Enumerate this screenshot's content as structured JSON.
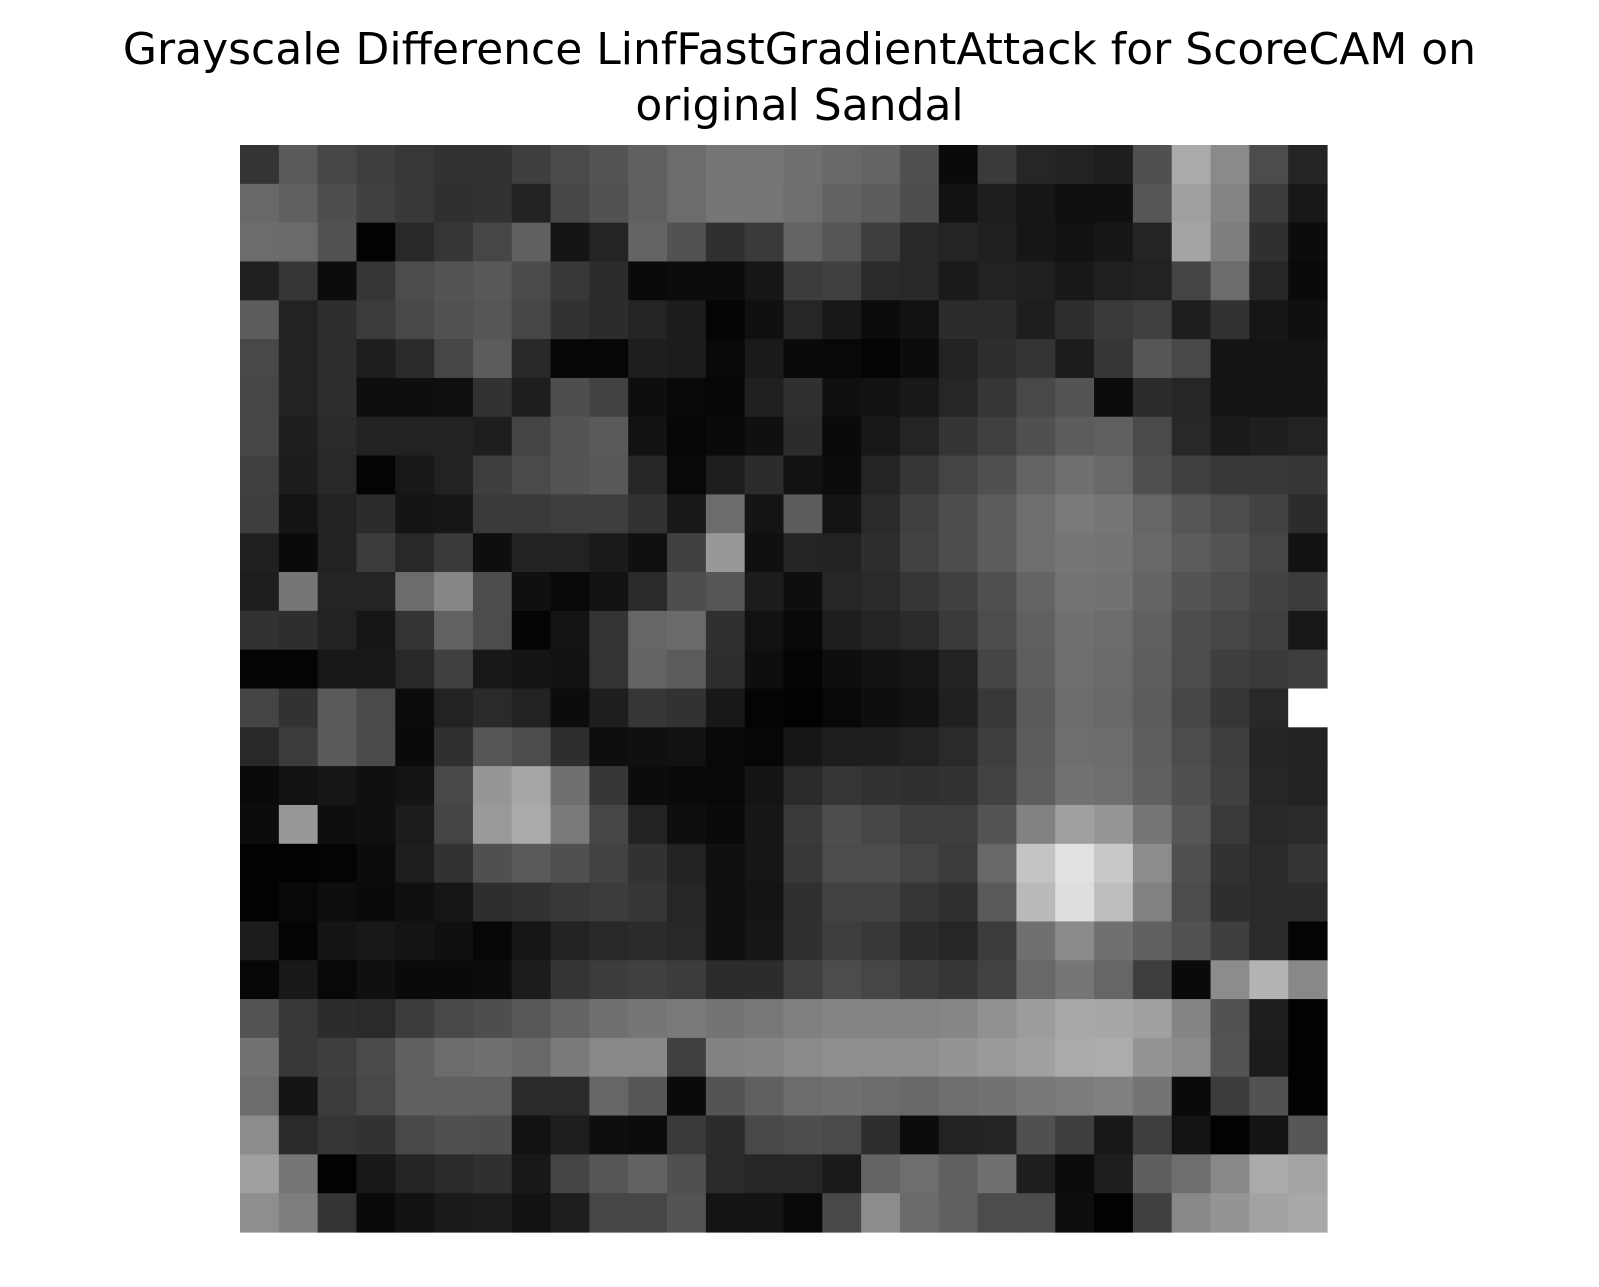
{
  "chart_data": {
    "type": "heatmap",
    "title_lines": [
      "Grayscale Difference LinfFastGradientAttack for ScoreCAM on",
      "original Sandal"
    ],
    "colormap": "gray",
    "value_range": [
      0,
      255
    ],
    "axes_visible": false,
    "rows": 28,
    "cols": 28,
    "values": [
      [
        52,
        90,
        70,
        62,
        55,
        50,
        50,
        62,
        74,
        84,
        96,
        108,
        118,
        118,
        112,
        104,
        100,
        80,
        10,
        58,
        38,
        34,
        30,
        80,
        170,
        138,
        76,
        36
      ],
      [
        104,
        96,
        78,
        64,
        56,
        48,
        50,
        34,
        70,
        82,
        96,
        108,
        118,
        118,
        110,
        98,
        92,
        78,
        18,
        30,
        22,
        16,
        16,
        86,
        160,
        132,
        60,
        24
      ],
      [
        108,
        106,
        82,
        2,
        40,
        54,
        70,
        96,
        20,
        36,
        100,
        82,
        48,
        58,
        100,
        86,
        62,
        40,
        36,
        32,
        22,
        18,
        22,
        36,
        164,
        126,
        48,
        12
      ],
      [
        32,
        54,
        12,
        54,
        76,
        84,
        88,
        74,
        56,
        44,
        10,
        12,
        12,
        22,
        60,
        64,
        42,
        40,
        26,
        34,
        32,
        24,
        32,
        34,
        68,
        108,
        38,
        10
      ],
      [
        92,
        34,
        46,
        60,
        72,
        82,
        86,
        70,
        50,
        44,
        36,
        28,
        4,
        16,
        38,
        24,
        12,
        18,
        44,
        44,
        30,
        46,
        58,
        64,
        30,
        50,
        22,
        16
      ],
      [
        72,
        34,
        46,
        30,
        42,
        70,
        92,
        40,
        6,
        6,
        30,
        28,
        8,
        26,
        10,
        8,
        4,
        12,
        34,
        46,
        52,
        28,
        54,
        86,
        72,
        20,
        20,
        20
      ],
      [
        70,
        34,
        46,
        14,
        14,
        16,
        50,
        30,
        78,
        66,
        14,
        8,
        6,
        32,
        48,
        16,
        18,
        24,
        38,
        54,
        72,
        84,
        12,
        44,
        38,
        20,
        20,
        20
      ],
      [
        70,
        30,
        42,
        34,
        34,
        34,
        30,
        68,
        84,
        90,
        18,
        6,
        10,
        16,
        44,
        10,
        24,
        36,
        52,
        64,
        80,
        92,
        96,
        74,
        40,
        26,
        30,
        34
      ],
      [
        64,
        28,
        40,
        4,
        24,
        34,
        62,
        74,
        84,
        88,
        38,
        8,
        30,
        44,
        18,
        12,
        36,
        54,
        68,
        80,
        100,
        112,
        104,
        80,
        64,
        56,
        56,
        54
      ],
      [
        62,
        20,
        34,
        44,
        20,
        22,
        58,
        58,
        62,
        62,
        50,
        24,
        108,
        20,
        92,
        20,
        42,
        64,
        78,
        92,
        110,
        122,
        118,
        102,
        86,
        76,
        66,
        44
      ],
      [
        32,
        10,
        34,
        60,
        40,
        58,
        14,
        34,
        34,
        26,
        16,
        64,
        152,
        16,
        36,
        34,
        46,
        66,
        78,
        92,
        110,
        118,
        116,
        104,
        92,
        84,
        70,
        18
      ],
      [
        30,
        118,
        36,
        36,
        108,
        134,
        76,
        16,
        8,
        18,
        42,
        78,
        86,
        28,
        14,
        38,
        42,
        54,
        64,
        80,
        100,
        116,
        114,
        100,
        84,
        76,
        66,
        60
      ],
      [
        50,
        46,
        34,
        22,
        52,
        98,
        76,
        4,
        20,
        52,
        102,
        106,
        48,
        18,
        8,
        30,
        36,
        42,
        58,
        76,
        96,
        112,
        108,
        96,
        78,
        70,
        64,
        24
      ],
      [
        4,
        4,
        24,
        24,
        40,
        64,
        24,
        20,
        18,
        52,
        100,
        92,
        46,
        14,
        4,
        14,
        18,
        22,
        34,
        68,
        94,
        110,
        106,
        94,
        76,
        62,
        58,
        62
      ],
      [
        68,
        50,
        90,
        74,
        12,
        34,
        42,
        34,
        12,
        30,
        54,
        50,
        24,
        4,
        2,
        8,
        14,
        18,
        32,
        56,
        90,
        108,
        104,
        92,
        70,
        54,
        40,
        255
      ],
      [
        40,
        60,
        90,
        74,
        10,
        48,
        86,
        76,
        46,
        14,
        16,
        18,
        8,
        6,
        22,
        30,
        30,
        34,
        42,
        62,
        92,
        110,
        108,
        94,
        76,
        62,
        36,
        34
      ],
      [
        10,
        18,
        22,
        16,
        20,
        72,
        150,
        166,
        112,
        54,
        12,
        10,
        8,
        20,
        42,
        54,
        50,
        48,
        50,
        66,
        94,
        114,
        110,
        96,
        80,
        64,
        38,
        34
      ],
      [
        12,
        152,
        14,
        16,
        28,
        68,
        154,
        170,
        122,
        70,
        34,
        14,
        10,
        22,
        58,
        78,
        70,
        62,
        62,
        84,
        130,
        160,
        150,
        118,
        86,
        58,
        40,
        42
      ],
      [
        2,
        2,
        4,
        12,
        30,
        50,
        80,
        90,
        80,
        66,
        50,
        34,
        16,
        22,
        56,
        76,
        76,
        68,
        60,
        104,
        196,
        226,
        200,
        140,
        80,
        50,
        42,
        52
      ],
      [
        2,
        8,
        14,
        10,
        16,
        22,
        46,
        50,
        56,
        60,
        54,
        38,
        16,
        20,
        48,
        66,
        66,
        54,
        48,
        90,
        186,
        222,
        190,
        130,
        76,
        46,
        42,
        44
      ],
      [
        28,
        4,
        20,
        24,
        20,
        16,
        6,
        22,
        34,
        40,
        44,
        40,
        16,
        22,
        48,
        62,
        56,
        44,
        38,
        60,
        112,
        138,
        112,
        96,
        82,
        62,
        42,
        4
      ],
      [
        6,
        24,
        8,
        16,
        10,
        10,
        12,
        28,
        52,
        60,
        64,
        60,
        44,
        44,
        64,
        76,
        70,
        60,
        54,
        66,
        104,
        118,
        102,
        62,
        10,
        140,
        180,
        136
      ],
      [
        84,
        56,
        44,
        42,
        60,
        72,
        78,
        88,
        100,
        112,
        118,
        122,
        116,
        120,
        128,
        132,
        132,
        132,
        134,
        144,
        156,
        168,
        166,
        160,
        132,
        82,
        30,
        2
      ],
      [
        114,
        56,
        62,
        74,
        96,
        108,
        112,
        104,
        122,
        136,
        136,
        64,
        130,
        132,
        138,
        142,
        142,
        142,
        148,
        154,
        160,
        170,
        172,
        148,
        138,
        84,
        28,
        2
      ],
      [
        108,
        20,
        60,
        72,
        96,
        96,
        96,
        42,
        42,
        102,
        86,
        10,
        84,
        96,
        108,
        112,
        108,
        104,
        110,
        114,
        120,
        124,
        128,
        116,
        10,
        60,
        82,
        2
      ],
      [
        140,
        42,
        54,
        50,
        72,
        80,
        78,
        18,
        30,
        14,
        12,
        58,
        44,
        72,
        78,
        74,
        46,
        12,
        34,
        36,
        80,
        62,
        24,
        62,
        20,
        2,
        20,
        86
      ],
      [
        160,
        118,
        2,
        24,
        36,
        42,
        48,
        24,
        68,
        86,
        98,
        80,
        42,
        38,
        38,
        26,
        100,
        110,
        96,
        112,
        30,
        12,
        30,
        94,
        110,
        136,
        170,
        164
      ],
      [
        142,
        126,
        52,
        10,
        18,
        26,
        28,
        18,
        30,
        70,
        70,
        84,
        20,
        20,
        8,
        72,
        140,
        106,
        96,
        76,
        76,
        14,
        2,
        64,
        136,
        148,
        162,
        168
      ]
    ]
  }
}
